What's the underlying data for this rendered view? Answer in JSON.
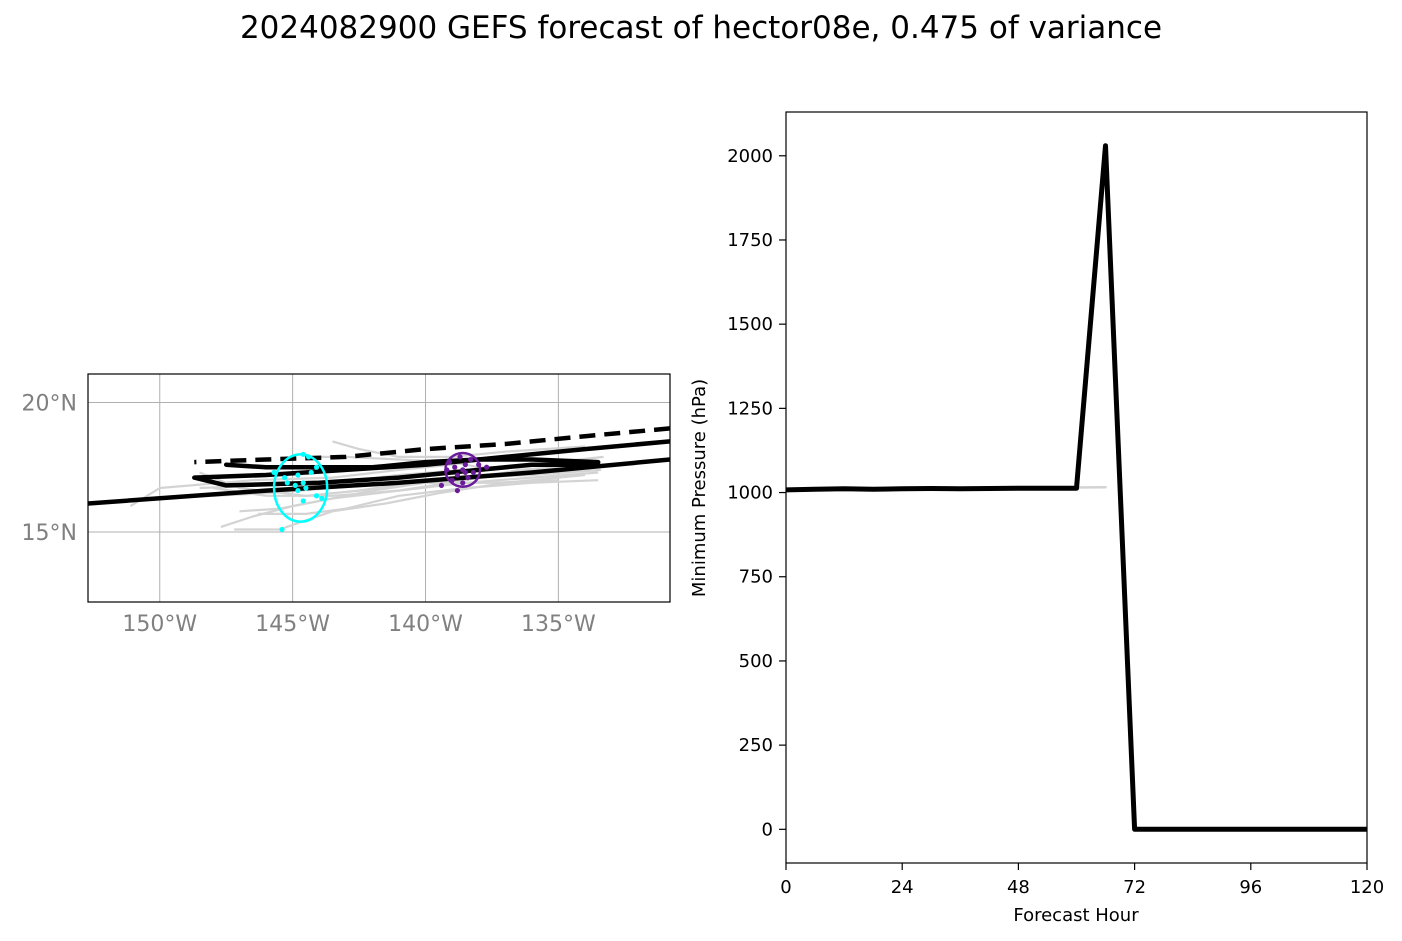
{
  "title": "2024082900 GEFS forecast of hector08e, 0.475 of variance",
  "chart_data": [
    {
      "type": "line",
      "panel": "track-map",
      "projection": "PlateCarree",
      "xlim": [
        -152.7,
        -130.8
      ],
      "ylim": [
        12.3,
        21.1
      ],
      "xticks": [
        -150,
        -145,
        -140,
        -135
      ],
      "xtick_labels": [
        "150°W",
        "145°W",
        "140°W",
        "135°W"
      ],
      "yticks": [
        15,
        20
      ],
      "ytick_labels": [
        "15°N",
        "20°N"
      ],
      "grid": true,
      "colors": {
        "ensemble": "#d3d3d3",
        "track": "#000000",
        "ellipse_early": "#00ffff",
        "ellipse_late": "#6a1b9a",
        "grid": "#b0b0b0"
      },
      "ensemble_tracks": [
        [
          [
            -133.4,
            17.4
          ],
          [
            -136.0,
            17.2
          ],
          [
            -138.5,
            17.1
          ],
          [
            -141.0,
            16.9
          ],
          [
            -143.5,
            16.7
          ],
          [
            -146.0,
            16.5
          ],
          [
            -148.0,
            16.4
          ]
        ],
        [
          [
            -133.3,
            17.9
          ],
          [
            -136.0,
            17.6
          ],
          [
            -138.5,
            17.4
          ],
          [
            -141.0,
            17.2
          ],
          [
            -143.5,
            16.9
          ],
          [
            -146.0,
            16.8
          ],
          [
            -148.5,
            16.7
          ]
        ],
        [
          [
            -133.5,
            17.0
          ],
          [
            -136.0,
            16.9
          ],
          [
            -138.5,
            16.7
          ],
          [
            -141.0,
            16.4
          ],
          [
            -143.0,
            15.9
          ],
          [
            -144.5,
            15.7
          ],
          [
            -146.3,
            15.7
          ]
        ],
        [
          [
            -134.5,
            18.2
          ],
          [
            -137.0,
            17.9
          ],
          [
            -139.0,
            17.6
          ],
          [
            -141.0,
            17.4
          ],
          [
            -143.5,
            17.1
          ],
          [
            -146.5,
            17.0
          ],
          [
            -150.0,
            16.7
          ],
          [
            -151.1,
            16.0
          ]
        ],
        [
          [
            -133.5,
            17.6
          ],
          [
            -136.5,
            17.4
          ],
          [
            -138.5,
            17.0
          ],
          [
            -141.0,
            16.6
          ],
          [
            -143.5,
            16.3
          ],
          [
            -145.5,
            15.9
          ],
          [
            -147.0,
            15.8
          ]
        ],
        [
          [
            -136.5,
            17.5
          ],
          [
            -138.0,
            17.5
          ],
          [
            -139.0,
            17.7
          ],
          [
            -141.0,
            17.8
          ],
          [
            -143.0,
            17.9
          ],
          [
            -144.5,
            17.9
          ]
        ],
        [
          [
            -135.0,
            17.0
          ],
          [
            -137.5,
            16.9
          ],
          [
            -140.0,
            16.9
          ],
          [
            -142.0,
            16.6
          ],
          [
            -143.5,
            16.3
          ],
          [
            -145.0,
            16.0
          ],
          [
            -146.5,
            15.6
          ],
          [
            -147.7,
            15.2
          ]
        ],
        [
          [
            -134.0,
            18.3
          ],
          [
            -137.0,
            18.1
          ],
          [
            -139.0,
            17.9
          ],
          [
            -141.0,
            17.9
          ],
          [
            -142.5,
            18.2
          ],
          [
            -143.5,
            18.5
          ]
        ],
        [
          [
            -133.5,
            17.3
          ],
          [
            -136.0,
            17.1
          ],
          [
            -138.5,
            16.9
          ],
          [
            -141.0,
            16.6
          ],
          [
            -143.5,
            16.4
          ],
          [
            -146.0,
            16.4
          ],
          [
            -148.0,
            16.7
          ]
        ],
        [
          [
            -135.5,
            17.4
          ],
          [
            -138.0,
            17.2
          ],
          [
            -140.5,
            16.9
          ],
          [
            -142.5,
            16.6
          ],
          [
            -144.5,
            16.4
          ],
          [
            -147.0,
            16.7
          ],
          [
            -148.5,
            17.3
          ]
        ],
        [
          [
            -134.0,
            17.2
          ],
          [
            -137.0,
            16.9
          ],
          [
            -139.5,
            16.5
          ],
          [
            -141.5,
            16.1
          ],
          [
            -143.5,
            15.8
          ],
          [
            -145.5,
            15.1
          ],
          [
            -147.2,
            15.1
          ]
        ]
      ],
      "black_tracks": [
        {
          "style": "solid",
          "points": [
            [
              -130.8,
              17.8
            ],
            [
              -136.0,
              17.3
            ],
            [
              -141.0,
              16.9
            ],
            [
              -146.0,
              16.6
            ],
            [
              -152.7,
              16.1
            ]
          ]
        },
        {
          "style": "solid",
          "points": [
            [
              -130.8,
              18.5
            ],
            [
              -134.0,
              18.2
            ],
            [
              -137.0,
              17.9
            ],
            [
              -140.0,
              17.6
            ],
            [
              -143.0,
              17.4
            ],
            [
              -146.0,
              17.2
            ],
            [
              -148.7,
              17.1
            ],
            [
              -147.5,
              16.8
            ],
            [
              -144.0,
              16.9
            ],
            [
              -141.0,
              17.1
            ],
            [
              -138.0,
              17.4
            ],
            [
              -136.0,
              17.6
            ],
            [
              -133.5,
              17.6
            ]
          ]
        },
        {
          "style": "solid",
          "points": [
            [
              -133.5,
              17.7
            ],
            [
              -136.0,
              17.8
            ],
            [
              -138.0,
              17.8
            ],
            [
              -140.0,
              17.7
            ],
            [
              -142.0,
              17.5
            ],
            [
              -144.0,
              17.5
            ],
            [
              -146.0,
              17.5
            ],
            [
              -147.5,
              17.6
            ]
          ]
        },
        {
          "style": "dashed",
          "points": [
            [
              -130.8,
              19.0
            ],
            [
              -134.0,
              18.7
            ],
            [
              -137.0,
              18.4
            ],
            [
              -140.0,
              18.2
            ],
            [
              -143.0,
              17.9
            ],
            [
              -146.0,
              17.8
            ],
            [
              -148.7,
              17.7
            ]
          ]
        }
      ],
      "ellipses": [
        {
          "center": [
            -144.7,
            16.7
          ],
          "rx_deg": 1.0,
          "ry_deg": 1.3,
          "color": "#00ffff",
          "points": [
            [
              -144.6,
              18.0
            ],
            [
              -144.4,
              17.9
            ],
            [
              -144.1,
              17.5
            ],
            [
              -144.3,
              17.3
            ],
            [
              -144.8,
              17.2
            ],
            [
              -145.3,
              17.1
            ],
            [
              -144.6,
              16.9
            ],
            [
              -144.9,
              16.8
            ],
            [
              -144.5,
              16.7
            ],
            [
              -144.8,
              16.6
            ],
            [
              -144.1,
              16.4
            ],
            [
              -144.6,
              16.2
            ],
            [
              -145.4,
              15.1
            ],
            [
              -145.7,
              17.3
            ],
            [
              -143.9,
              16.3
            ],
            [
              -145.2,
              16.9
            ]
          ]
        },
        {
          "center": [
            -138.6,
            17.4
          ],
          "rx_deg": 0.65,
          "ry_deg": 0.65,
          "color": "#6a1b9a",
          "points": [
            [
              -138.7,
              17.9
            ],
            [
              -138.3,
              17.8
            ],
            [
              -138.0,
              17.6
            ],
            [
              -137.7,
              17.5
            ],
            [
              -138.5,
              17.6
            ],
            [
              -138.6,
              17.4
            ],
            [
              -138.9,
              17.5
            ],
            [
              -139.2,
              17.4
            ],
            [
              -138.8,
              17.2
            ],
            [
              -138.4,
              17.1
            ],
            [
              -139.0,
              17.0
            ],
            [
              -138.6,
              16.9
            ],
            [
              -139.4,
              16.8
            ],
            [
              -138.8,
              16.6
            ],
            [
              -138.2,
              17.3
            ],
            [
              -139.1,
              17.7
            ],
            [
              -138.5,
              17.3
            ]
          ]
        }
      ]
    },
    {
      "type": "line",
      "panel": "pressure",
      "xlabel": "Forecast Hour",
      "ylabel": "Minimum Pressure (hPa)",
      "xlim": [
        0,
        120
      ],
      "ylim": [
        -100,
        2130
      ],
      "xticks": [
        0,
        24,
        48,
        72,
        96,
        120
      ],
      "yticks": [
        0,
        250,
        500,
        750,
        1000,
        1250,
        1500,
        1750,
        2000
      ],
      "grid": false,
      "series": [
        {
          "role": "ensemble-member",
          "color": "#d3d3d3",
          "x": [
            0,
            6,
            12,
            18,
            24,
            30,
            36,
            42,
            48,
            54,
            60,
            66
          ],
          "y": [
            1010,
            1012,
            1011,
            1012,
            1013,
            1012,
            1013,
            1014,
            1014,
            1015,
            1015,
            1016
          ]
        },
        {
          "role": "main",
          "color": "#000000",
          "x": [
            0,
            6,
            12,
            18,
            24,
            30,
            36,
            42,
            48,
            54,
            60,
            66,
            72,
            78,
            84,
            90,
            96,
            102,
            108,
            114,
            120
          ],
          "y": [
            1008,
            1010,
            1011,
            1010,
            1011,
            1012,
            1011,
            1012,
            1013,
            1013,
            1013,
            2030,
            0,
            0,
            0,
            0,
            0,
            0,
            0,
            0,
            0
          ]
        }
      ]
    }
  ]
}
